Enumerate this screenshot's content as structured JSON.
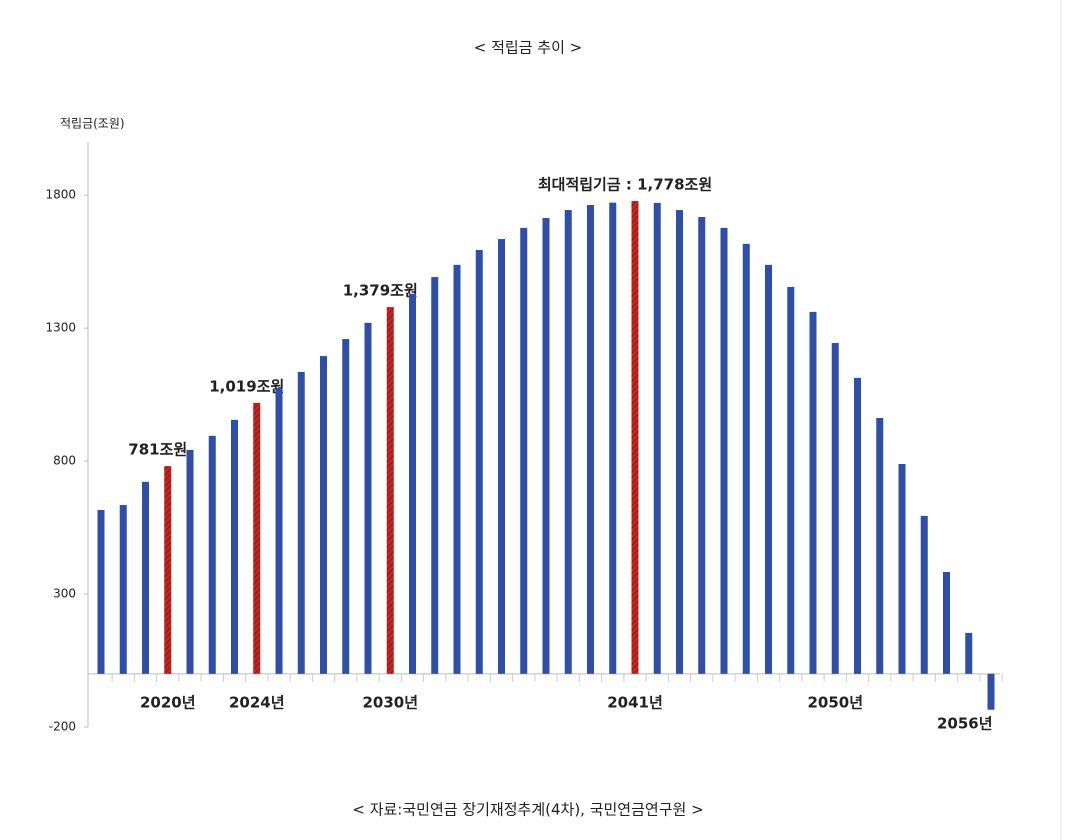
{
  "chart_data": {
    "type": "bar",
    "title": "< 적립금 추이 >",
    "y_label": "적립금(조원)",
    "source": "< 자료:국민연금 장기재정추계(4차), 국민연금연구원 >",
    "categories": [
      null,
      null,
      null,
      "2020년",
      null,
      null,
      null,
      "2024년",
      null,
      null,
      null,
      null,
      null,
      "2030년",
      null,
      null,
      null,
      null,
      null,
      null,
      null,
      null,
      null,
      null,
      "2041년",
      null,
      null,
      null,
      null,
      null,
      null,
      null,
      null,
      "2050년",
      null,
      null,
      null,
      null,
      null,
      "2056년",
      null
    ],
    "values": [
      616,
      635,
      722,
      781,
      842,
      895,
      955,
      1019,
      1075,
      1135,
      1195,
      1259,
      1320,
      1379,
      1429,
      1492,
      1538,
      1594,
      1635,
      1677,
      1714,
      1744,
      1763,
      1772,
      1778,
      1771,
      1744,
      1718,
      1677,
      1617,
      1538,
      1455,
      1361,
      1244,
      1113,
      962,
      789,
      594,
      383,
      154,
      -135
    ],
    "value_labels": [
      null,
      null,
      null,
      "781조원",
      null,
      null,
      null,
      "1,019조원",
      null,
      null,
      null,
      null,
      null,
      "1,379조원",
      null,
      null,
      null,
      null,
      null,
      null,
      null,
      null,
      null,
      null,
      "최대적립기금 : 1,778조원",
      null,
      null,
      null,
      null,
      null,
      null,
      null,
      null,
      null,
      null,
      null,
      null,
      null,
      null,
      null,
      null
    ],
    "color": "#2f4ea8",
    "highlight_color": "#c4241f",
    "highlight": [
      3,
      7,
      13,
      24
    ],
    "ylim": [
      -200,
      2000
    ],
    "yticks": [
      -200,
      300,
      800,
      1300,
      1800
    ]
  }
}
